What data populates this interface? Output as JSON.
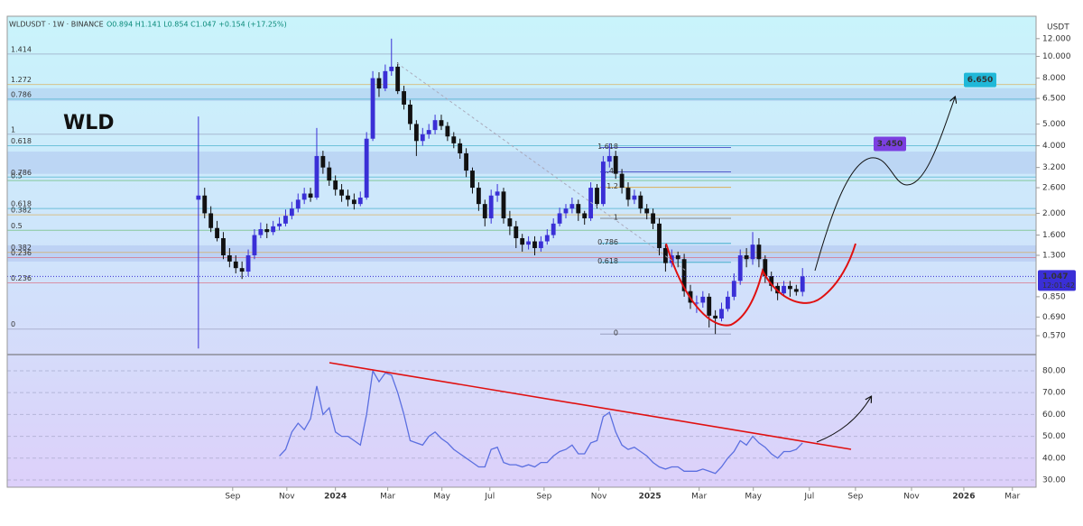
{
  "header": {
    "symbol": "WLDUSDT · 1W · BINANCE",
    "ohlc": "O0.894 H1.141 L0.854 C1.047 +0.154 (+17.25%)",
    "currency": "USDT"
  },
  "chart_data": [
    {
      "type": "candlestick",
      "title": "WLD",
      "up_color": "#3a2fd6",
      "down_color": "#111111",
      "log_scale": true,
      "xlim": [
        -30.7,
        134.5
      ],
      "ylim": [
        0.474,
        15.1
      ],
      "yticks": [
        {
          "value": 12,
          "label": "12.000"
        },
        {
          "value": 10,
          "label": "10.000"
        },
        {
          "value": 8,
          "label": "8.000"
        },
        {
          "value": 6.5,
          "label": "6.500"
        },
        {
          "value": 5,
          "label": "5.000"
        },
        {
          "value": 4,
          "label": "4.000"
        },
        {
          "value": 3.2,
          "label": "3.200"
        },
        {
          "value": 2.6,
          "label": "2.600"
        },
        {
          "value": 2,
          "label": "2.000"
        },
        {
          "value": 1.6,
          "label": "1.600"
        },
        {
          "value": 1.3,
          "label": "1.300"
        },
        {
          "value": 0.85,
          "label": "0.850"
        },
        {
          "value": 0.69,
          "label": "0.690"
        },
        {
          "value": 0.57,
          "label": "0.570"
        }
      ],
      "last_price": {
        "value": 1.047,
        "countdown": "12:01:42"
      },
      "targets": [
        {
          "value": 3.45,
          "label": "3.450"
        },
        {
          "value": 6.65,
          "label": "6.650"
        }
      ],
      "zones": [
        {
          "from": 6.33,
          "to": 7.22
        },
        {
          "from": 3.0,
          "to": 3.77
        },
        {
          "from": 1.22,
          "to": 1.44
        }
      ],
      "fib_levels": [
        {
          "value": 10.25,
          "label": "1.414",
          "color": "#8a8fb0"
        },
        {
          "value": 7.5,
          "label": "1.272",
          "color": "#e0a030"
        },
        {
          "value": 6.45,
          "label": "0.786",
          "color": "#20a0c0"
        },
        {
          "value": 4.5,
          "label": "1",
          "color": "#8a8fb0"
        },
        {
          "value": 4.0,
          "label": "0.618",
          "color": "#20a0c0"
        },
        {
          "value": 2.9,
          "label": "0.786",
          "color": "#20a0c0"
        },
        {
          "value": 2.8,
          "label": "0.5",
          "color": "#4caf50"
        },
        {
          "value": 2.1,
          "label": "0.618",
          "color": "#20a0c0"
        },
        {
          "value": 1.97,
          "label": "0.382",
          "color": "#e0a030"
        },
        {
          "value": 1.68,
          "label": "0.5",
          "color": "#4caf50"
        },
        {
          "value": 1.34,
          "label": "0.382",
          "color": "#e0a030"
        },
        {
          "value": 1.27,
          "label": "0.236",
          "color": "#e05060"
        },
        {
          "value": 0.98,
          "label": "0.236",
          "color": "#e05060"
        },
        {
          "value": 0.61,
          "label": "0",
          "color": "#8a8fb0"
        }
      ],
      "fib_levels_2": [
        {
          "value": 3.93,
          "label": "1.618",
          "color": "#3a3fc0"
        },
        {
          "value": 3.06,
          "label": "1.41",
          "color": "#3a3fc0"
        },
        {
          "value": 2.61,
          "label": "1.2",
          "color": "#e0a030"
        },
        {
          "value": 1.9,
          "label": "1",
          "color": "#707070"
        },
        {
          "value": 1.47,
          "label": "0.786",
          "color": "#20a0c0"
        },
        {
          "value": 1.21,
          "label": "0.618",
          "color": "#20a0c0"
        },
        {
          "value": 0.58,
          "label": "0",
          "color": "#8a8fb0"
        }
      ],
      "open": [
        2.3,
        2.4,
        2.0,
        1.72,
        1.55,
        1.3,
        1.22,
        1.14,
        1.1,
        1.3,
        1.6,
        1.7,
        1.65,
        1.75,
        1.8,
        1.95,
        2.1,
        2.3,
        2.45,
        2.35,
        3.6,
        3.2,
        2.8,
        2.55,
        2.4,
        2.3,
        2.2,
        2.35,
        4.3,
        8.0,
        7.2,
        8.6,
        9.0,
        7.0,
        6.1,
        5.0,
        4.2,
        4.5,
        4.7,
        5.2,
        4.9,
        4.4,
        4.1,
        3.7,
        3.1,
        2.6,
        2.2,
        1.9,
        2.4,
        2.5,
        1.9,
        1.75,
        1.55,
        1.45,
        1.5,
        1.4,
        1.5,
        1.6,
        1.8,
        2.0,
        2.1,
        2.2,
        2.0,
        1.9,
        2.6,
        2.2,
        3.4,
        3.6,
        3.0,
        2.6,
        2.3,
        2.4,
        2.1,
        2.0,
        1.8,
        1.4,
        1.2,
        1.3,
        1.25,
        0.9,
        0.8,
        0.8,
        0.85,
        0.7,
        0.68,
        0.75,
        0.85,
        1.0,
        1.3,
        1.25,
        1.45,
        1.25,
        1.05,
        0.95,
        0.88,
        0.95,
        0.92,
        0.894
      ],
      "high": [
        5.4,
        2.6,
        2.15,
        1.85,
        1.65,
        1.4,
        1.3,
        1.22,
        1.38,
        1.7,
        1.82,
        1.8,
        1.85,
        1.92,
        2.08,
        2.25,
        2.45,
        2.6,
        2.6,
        4.8,
        3.8,
        3.4,
        2.95,
        2.7,
        2.55,
        2.45,
        2.5,
        4.6,
        8.6,
        8.5,
        9.2,
        12.0,
        9.4,
        7.4,
        6.4,
        5.2,
        4.8,
        5.0,
        5.5,
        5.5,
        5.1,
        4.6,
        4.3,
        3.9,
        3.2,
        2.75,
        2.3,
        2.55,
        2.7,
        2.6,
        2.05,
        1.85,
        1.62,
        1.58,
        1.58,
        1.58,
        1.7,
        1.9,
        2.12,
        2.2,
        2.35,
        2.3,
        2.05,
        2.75,
        2.7,
        3.6,
        4.1,
        3.8,
        3.15,
        2.75,
        2.55,
        2.5,
        2.2,
        2.1,
        1.9,
        1.45,
        1.38,
        1.35,
        1.32,
        0.96,
        0.86,
        0.9,
        0.88,
        0.74,
        0.8,
        0.9,
        1.08,
        1.38,
        1.4,
        1.65,
        1.55,
        1.3,
        1.1,
        0.98,
        1.0,
        1.0,
        0.96,
        1.141
      ],
      "low": [
        0.5,
        1.9,
        1.65,
        1.5,
        1.25,
        1.15,
        1.08,
        1.02,
        1.05,
        1.25,
        1.55,
        1.55,
        1.6,
        1.68,
        1.75,
        1.88,
        2.02,
        2.2,
        2.25,
        2.3,
        3.0,
        2.65,
        2.4,
        2.25,
        2.15,
        2.08,
        2.15,
        2.3,
        4.2,
        6.6,
        7.0,
        8.2,
        6.8,
        5.8,
        4.7,
        3.6,
        4.0,
        4.3,
        4.5,
        4.7,
        4.2,
        3.9,
        3.5,
        2.9,
        2.45,
        2.05,
        1.75,
        1.8,
        2.25,
        1.8,
        1.6,
        1.4,
        1.35,
        1.38,
        1.3,
        1.35,
        1.45,
        1.55,
        1.75,
        1.9,
        2.0,
        1.85,
        1.78,
        1.85,
        2.1,
        2.15,
        3.2,
        2.85,
        2.45,
        2.15,
        2.2,
        2.0,
        1.88,
        1.7,
        1.3,
        1.1,
        1.15,
        1.15,
        0.85,
        0.75,
        0.72,
        0.76,
        0.62,
        0.58,
        0.66,
        0.73,
        0.82,
        0.96,
        1.15,
        1.18,
        1.15,
        0.98,
        0.9,
        0.82,
        0.85,
        0.85,
        0.86,
        0.854
      ],
      "close": [
        2.4,
        2.0,
        1.72,
        1.55,
        1.3,
        1.22,
        1.14,
        1.1,
        1.3,
        1.6,
        1.7,
        1.65,
        1.75,
        1.8,
        1.95,
        2.1,
        2.3,
        2.45,
        2.35,
        3.6,
        3.2,
        2.8,
        2.55,
        2.4,
        2.3,
        2.2,
        2.35,
        4.3,
        8.0,
        7.2,
        8.6,
        9.0,
        7.0,
        6.1,
        5.0,
        4.2,
        4.5,
        4.7,
        5.2,
        4.9,
        4.4,
        4.1,
        3.7,
        3.1,
        2.6,
        2.2,
        1.9,
        2.4,
        2.5,
        1.9,
        1.75,
        1.55,
        1.45,
        1.5,
        1.4,
        1.5,
        1.6,
        1.8,
        2.0,
        2.1,
        2.2,
        2.0,
        1.9,
        2.6,
        2.2,
        3.4,
        3.6,
        3.0,
        2.6,
        2.3,
        2.4,
        2.1,
        2.0,
        1.8,
        1.4,
        1.2,
        1.3,
        1.25,
        0.9,
        0.8,
        0.8,
        0.85,
        0.7,
        0.68,
        0.75,
        0.85,
        1.0,
        1.3,
        1.25,
        1.45,
        1.25,
        1.05,
        0.95,
        0.88,
        0.95,
        0.92,
        0.894,
        1.047
      ]
    },
    {
      "type": "line",
      "color": "#5b6fe0",
      "xlim": [
        -30.7,
        134.5
      ],
      "ylim": [
        26.7,
        86.6
      ],
      "yticks": [
        {
          "value": 80,
          "label": "80.00"
        },
        {
          "value": 70,
          "label": "70.00"
        },
        {
          "value": 60,
          "label": "60.00"
        },
        {
          "value": 50,
          "label": "50.00"
        },
        {
          "value": 40,
          "label": "40.00"
        },
        {
          "value": 30,
          "label": "30.00"
        }
      ],
      "xticks": [
        {
          "value": 5.5,
          "label": "Sep"
        },
        {
          "value": 14.2,
          "label": "Nov"
        },
        {
          "value": 22,
          "label": "2024"
        },
        {
          "value": 30.4,
          "label": "Mar"
        },
        {
          "value": 39.1,
          "label": "May"
        },
        {
          "value": 46.8,
          "label": "Jul"
        },
        {
          "value": 55.5,
          "label": "Sep"
        },
        {
          "value": 64.3,
          "label": "Nov"
        },
        {
          "value": 72.5,
          "label": "2025"
        },
        {
          "value": 80.4,
          "label": "Mar"
        },
        {
          "value": 89.1,
          "label": "May"
        },
        {
          "value": 98.1,
          "label": "Jul"
        },
        {
          "value": 105.5,
          "label": "Sep"
        },
        {
          "value": 114.5,
          "label": "Nov"
        },
        {
          "value": 122.9,
          "label": "2026"
        },
        {
          "value": 130.7,
          "label": "Mar"
        }
      ],
      "values": [
        null,
        null,
        null,
        null,
        null,
        null,
        null,
        null,
        null,
        null,
        null,
        null,
        null,
        41,
        44,
        52,
        56,
        53,
        58,
        73,
        60,
        63,
        52,
        50,
        50,
        48,
        46,
        60,
        80,
        75,
        79,
        78,
        70,
        60,
        48,
        47,
        46,
        50,
        52,
        49,
        47,
        44,
        42,
        40,
        38,
        36,
        36,
        44,
        45,
        38,
        37,
        37,
        36,
        37,
        36,
        38,
        38,
        41,
        43,
        44,
        46,
        42,
        42,
        47,
        48,
        59,
        61,
        52,
        46,
        44,
        45,
        43,
        41,
        38,
        36,
        35,
        36,
        36,
        34,
        34,
        34,
        35,
        34,
        33,
        36,
        40,
        43,
        48,
        46,
        50,
        47,
        45,
        42,
        40,
        43,
        43,
        44,
        47
      ]
    }
  ]
}
